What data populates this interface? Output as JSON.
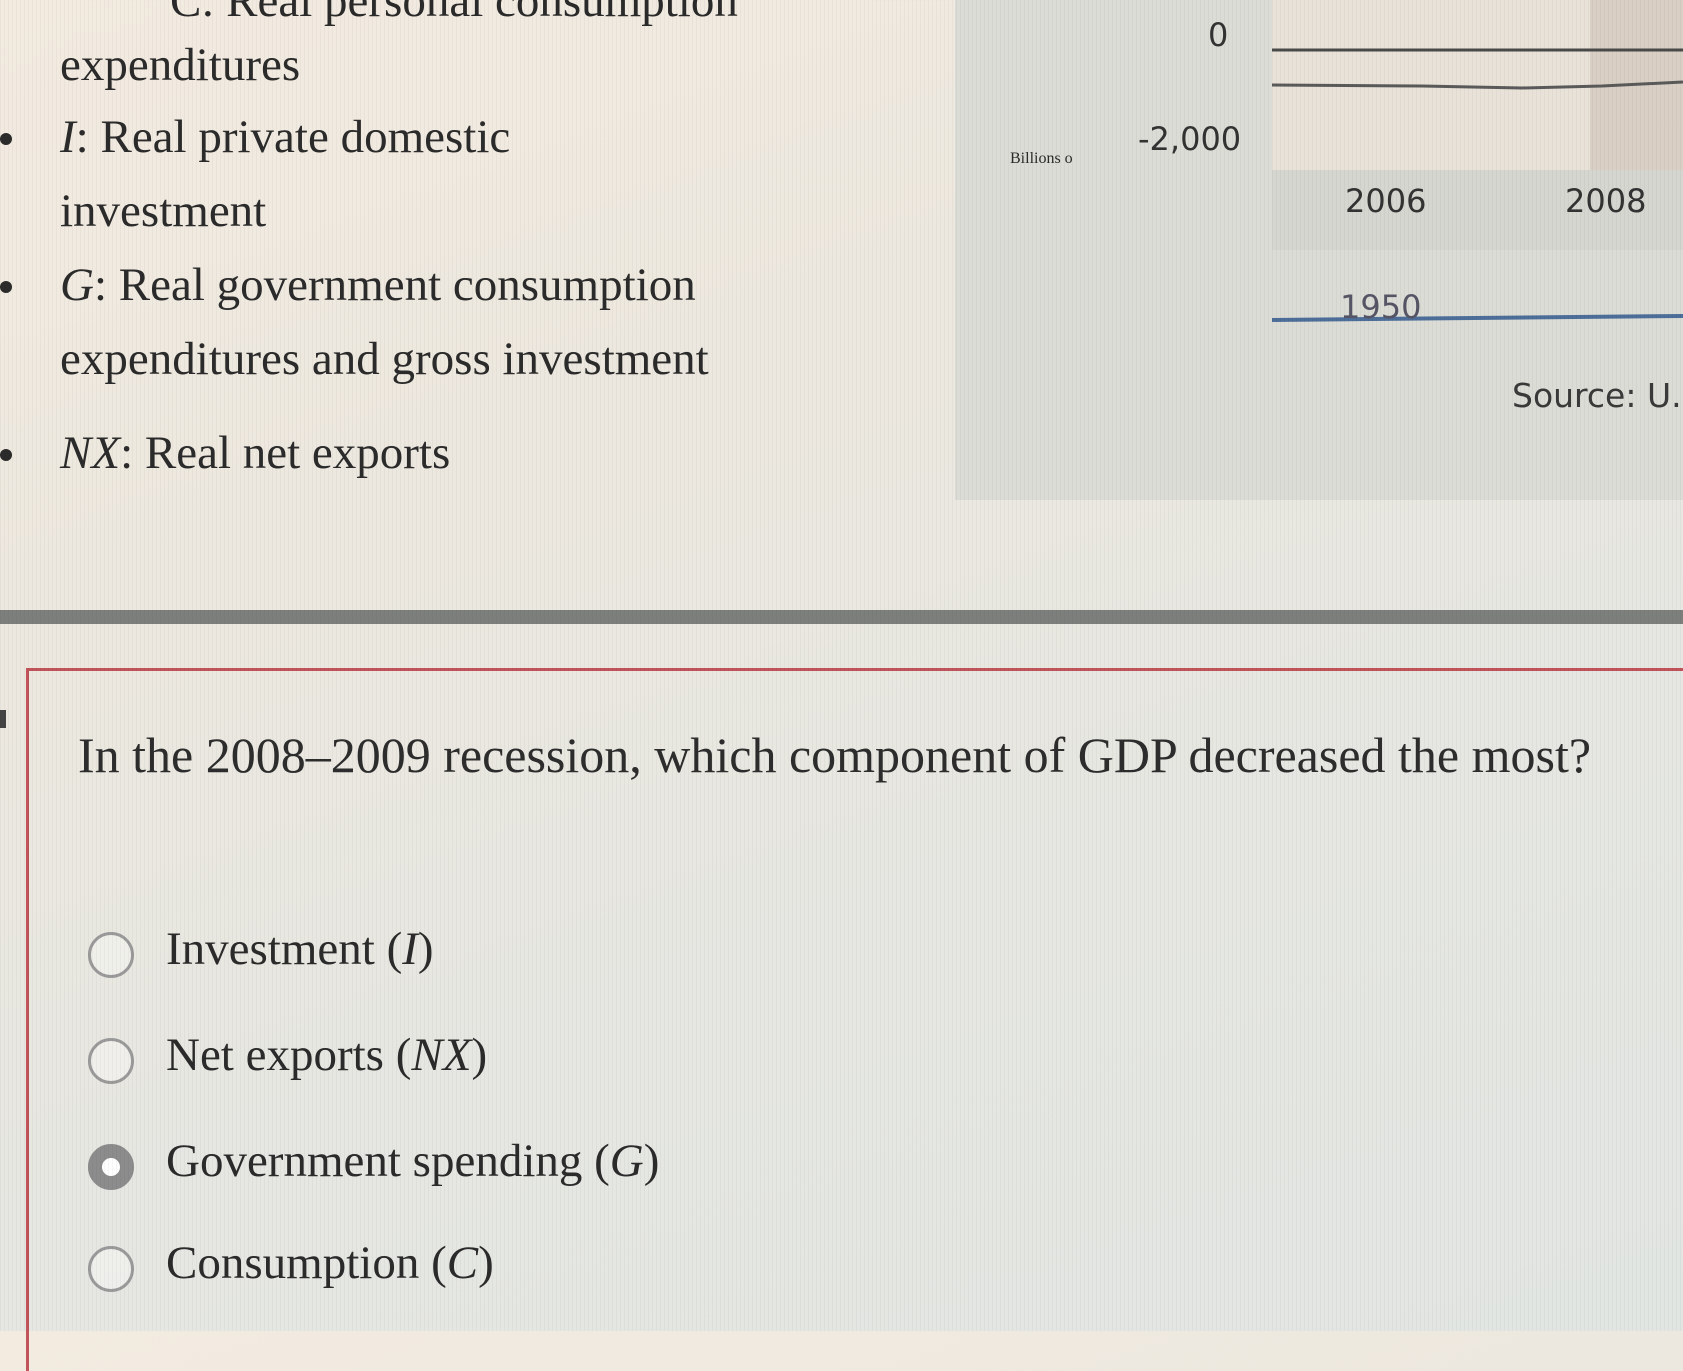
{
  "definitions": {
    "cut_text": "C: Real personal consumption",
    "items": [
      {
        "lines": [
          "expenditures"
        ],
        "var": "",
        "bullet": false
      },
      {
        "var": "I",
        "text_first": ": Real private domestic",
        "text_second": "investment",
        "bullet": true
      },
      {
        "var": "G",
        "text_first": ": Real government consumption",
        "text_second": "expenditures and gross investment",
        "bullet": true
      },
      {
        "var": "NX",
        "text_first": ": Real net exports",
        "text_second": "",
        "bullet": true
      }
    ]
  },
  "chart": {
    "ylabel": "Billions o",
    "ticks": [
      "0",
      "-2,000"
    ],
    "xticks": [
      "2006",
      "2008"
    ],
    "lower_tick": "1950",
    "source": "Source: U.S"
  },
  "question": {
    "prompt": "In the 2008–2009 recession, which component of GDP decreased the most?",
    "options": [
      {
        "label": "Investment (",
        "var": "I",
        "suffix": ")",
        "selected": false
      },
      {
        "label": "Net exports (",
        "var": "NX",
        "suffix": ")",
        "selected": false
      },
      {
        "label": "Government spending (",
        "var": "G",
        "suffix": ")",
        "selected": true
      },
      {
        "label": "Consumption (",
        "var": "C",
        "suffix": ")",
        "selected": false
      }
    ]
  },
  "colors": {
    "accent_border": "#c0545a",
    "divider": "#7d7f7c",
    "chart_line_dark": "#4a4a4a",
    "chart_line_blue": "#4d6e99"
  }
}
